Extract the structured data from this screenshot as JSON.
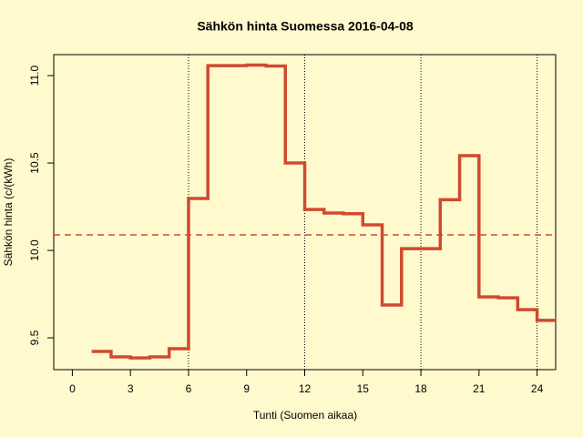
{
  "chart_data": {
    "type": "step",
    "title": "Sähkön hinta Suomessa 2016-04-08",
    "x_label": "Tunti (Suomen aikaa)",
    "y_label": "Sähkön hinta (c/(kWh)",
    "x": [
      1,
      2,
      3,
      4,
      5,
      6,
      7,
      8,
      9,
      10,
      11,
      12,
      13,
      14,
      15,
      16,
      17,
      18,
      19,
      20,
      21,
      22,
      23,
      24,
      25
    ],
    "series": [
      {
        "color": "#d04a30",
        "values": [
          9.422,
          9.391,
          9.385,
          9.391,
          9.438,
          10.297,
          11.057,
          11.057,
          11.06,
          11.055,
          10.5,
          10.234,
          10.214,
          10.21,
          10.146,
          9.688,
          10.01,
          10.01,
          10.29,
          10.542,
          9.734,
          9.729,
          9.661,
          9.6,
          9.6
        ]
      }
    ],
    "mean_line": {
      "value": 10.089,
      "color": "#d04a30"
    },
    "vlines": [
      6,
      12,
      18,
      24
    ],
    "xlim": [
      -0.96,
      24.96
    ],
    "ylim": [
      9.318,
      11.12
    ],
    "xticks": [
      0,
      3,
      6,
      9,
      12,
      15,
      18,
      21,
      24
    ],
    "yticks": [
      9.5,
      {
        "value": 10,
        "label": "10.0"
      },
      10.5,
      {
        "value": 11,
        "label": "11.0"
      }
    ]
  }
}
